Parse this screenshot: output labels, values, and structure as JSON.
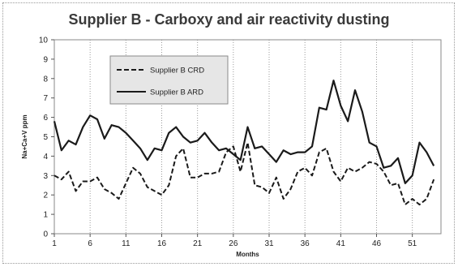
{
  "chart_data": {
    "type": "line",
    "title": "Supplier B - Carboxy and air reactivity dusting",
    "xlabel": "Months",
    "ylabel": "Na+Ca+V ppm",
    "ylim": [
      0,
      10
    ],
    "xlim": [
      1,
      55
    ],
    "x_ticks": [
      1,
      6,
      11,
      16,
      21,
      26,
      31,
      36,
      41,
      46,
      51
    ],
    "y_ticks": [
      0,
      1,
      2,
      3,
      4,
      5,
      6,
      7,
      8,
      9,
      10
    ],
    "grid": "vertical dotted",
    "legend_position": "top-left",
    "series": [
      {
        "name": "Supplier B CRD",
        "style": "dashed",
        "color": "#1a1a1a",
        "values": [
          3.0,
          2.8,
          3.2,
          2.2,
          2.7,
          2.7,
          2.9,
          2.3,
          2.1,
          1.8,
          2.6,
          3.4,
          3.1,
          2.4,
          2.2,
          2.0,
          2.5,
          4.0,
          4.4,
          2.9,
          2.9,
          3.1,
          3.1,
          3.2,
          4.2,
          4.5,
          3.2,
          4.7,
          2.5,
          2.4,
          2.1,
          2.9,
          1.8,
          2.3,
          3.2,
          3.4,
          3.0,
          4.2,
          4.4,
          3.2,
          2.7,
          3.4,
          3.2,
          3.4,
          3.7,
          3.6,
          3.2,
          2.5,
          2.6,
          1.5,
          1.8,
          1.5,
          1.8,
          2.8
        ]
      },
      {
        "name": "Supplier B ARD",
        "style": "solid",
        "color": "#1a1a1a",
        "values": [
          5.8,
          4.3,
          4.8,
          4.6,
          5.5,
          6.1,
          5.9,
          4.9,
          5.6,
          5.5,
          5.2,
          4.8,
          4.4,
          3.8,
          4.4,
          4.3,
          5.2,
          5.5,
          5.0,
          4.7,
          4.8,
          5.2,
          4.7,
          4.3,
          4.4,
          4.1,
          3.8,
          5.5,
          4.4,
          4.5,
          4.1,
          3.7,
          4.3,
          4.1,
          4.2,
          4.2,
          4.5,
          6.5,
          6.4,
          7.9,
          6.6,
          5.8,
          7.4,
          6.3,
          4.7,
          4.5,
          3.4,
          3.5,
          3.9,
          2.6,
          3.0,
          4.7,
          4.2,
          3.5
        ]
      }
    ]
  }
}
